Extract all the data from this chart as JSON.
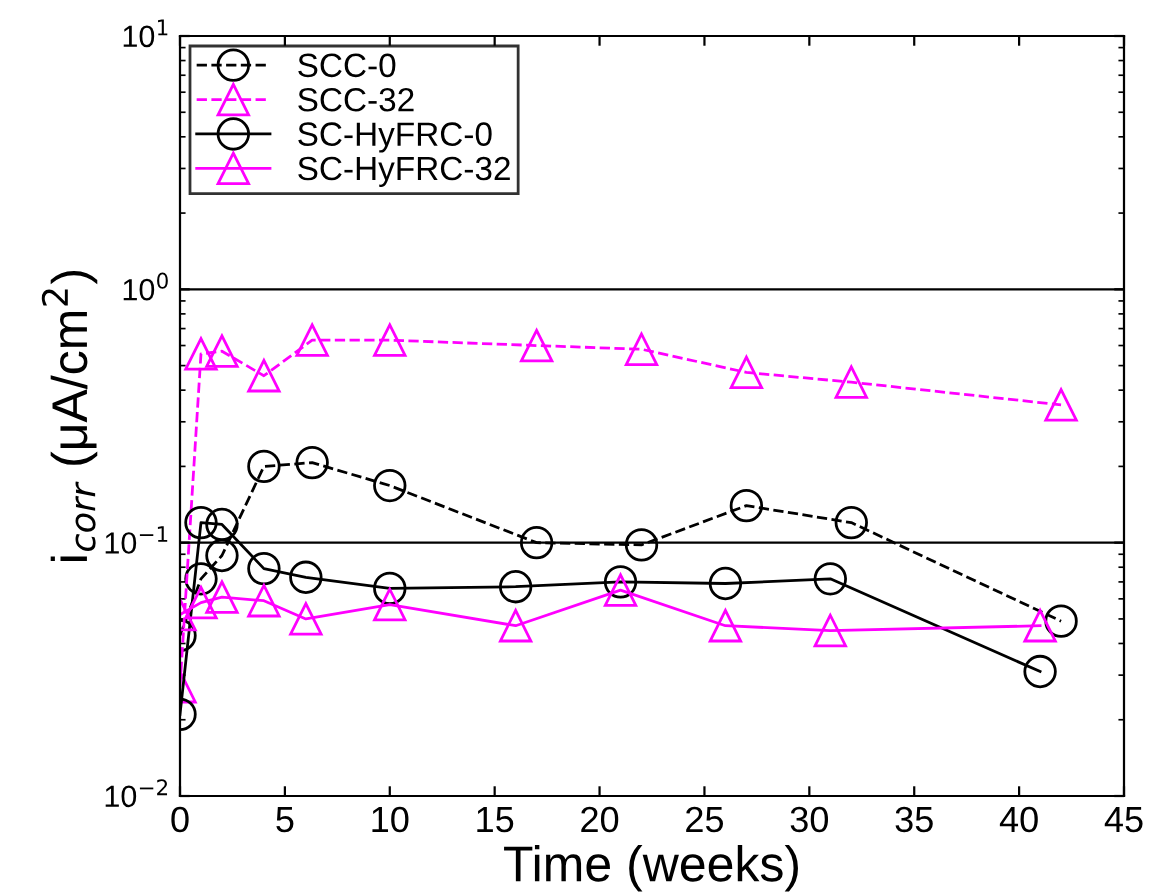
{
  "chart_data": {
    "type": "line",
    "xlabel": "Time (weeks)",
    "ylabel": "i$_{corr}$ (μA/cm$^{2}$)",
    "log": "y",
    "xlim": [
      0,
      45
    ],
    "xticks": [
      0,
      5,
      10,
      15,
      20,
      25,
      30,
      35,
      40,
      45
    ],
    "ylim": [
      0.01,
      10
    ],
    "yticks": [
      {
        "value": 0.01,
        "label": "10$^{−2}$"
      },
      {
        "value": 0.1,
        "label": "10$^{−1}$"
      },
      {
        "value": 1,
        "label": "10$^{0}$"
      },
      {
        "value": 10,
        "label": "10$^{1}$"
      }
    ],
    "grid": "y",
    "legend": "top left",
    "series": [
      {
        "name": "SCC-0",
        "color": "#000000",
        "marker": "circle",
        "line_style": "dashed",
        "x": [
          0,
          1,
          2,
          4,
          6.3,
          10,
          17,
          22,
          27,
          32,
          42
        ],
        "values": [
          0.043,
          0.072,
          0.089,
          0.2,
          0.207,
          0.168,
          0.1,
          0.098,
          0.14,
          0.12,
          0.049
        ]
      },
      {
        "name": "SCC-32",
        "color": "#ff00ff",
        "marker": "triangle",
        "line_style": "dashed",
        "x": [
          0,
          1,
          2,
          4,
          6.3,
          10,
          17,
          22,
          27,
          32,
          42
        ],
        "values": [
          0.027,
          0.556,
          0.57,
          0.456,
          0.63,
          0.63,
          0.6,
          0.58,
          0.47,
          0.43,
          0.35
        ]
      },
      {
        "name": "SC-HyFRC-0",
        "color": "#000000",
        "marker": "circle",
        "line_style": "solid",
        "x": [
          0,
          1,
          2,
          4,
          6,
          10,
          16,
          21,
          26,
          31,
          41
        ],
        "values": [
          0.021,
          0.12,
          0.118,
          0.079,
          0.073,
          0.066,
          0.067,
          0.07,
          0.069,
          0.072,
          0.031
        ]
      },
      {
        "name": "SC-HyFRC-32",
        "color": "#ff00ff",
        "marker": "triangle",
        "line_style": "solid",
        "x": [
          0,
          1,
          2,
          4,
          6,
          10,
          16,
          21,
          26,
          31,
          41
        ],
        "values": [
          0.052,
          0.058,
          0.061,
          0.059,
          0.05,
          0.057,
          0.047,
          0.065,
          0.047,
          0.045,
          0.047
        ]
      }
    ]
  }
}
